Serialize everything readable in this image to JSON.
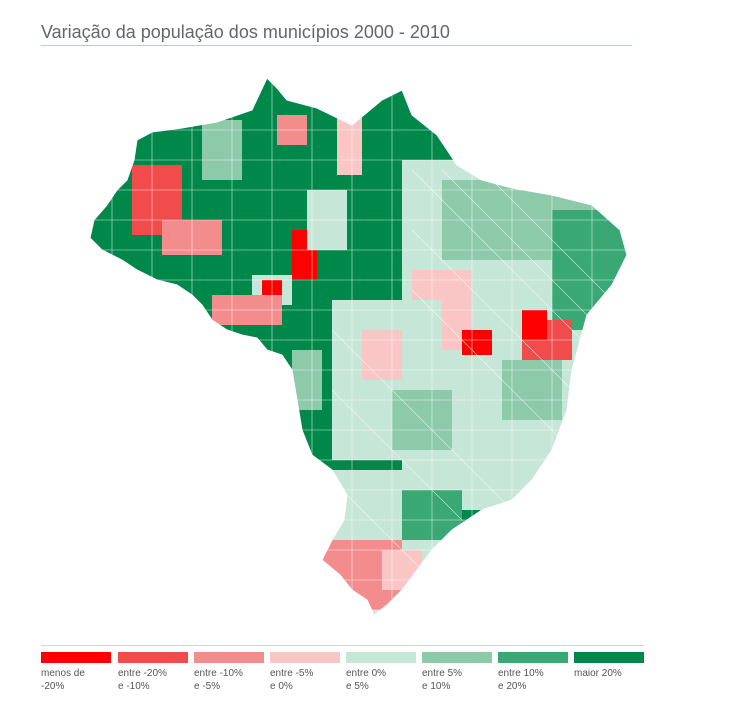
{
  "title": "Variação da população dos municípios 2000 - 2010",
  "legend": [
    {
      "label": "menos de\n-20%",
      "color": "#ff0000"
    },
    {
      "label": "entre -20%\ne -10%",
      "color": "#f14b4b"
    },
    {
      "label": "entre -10%\ne -5%",
      "color": "#f38c8c"
    },
    {
      "label": "entre -5%\ne 0%",
      "color": "#f9c5c5"
    },
    {
      "label": "entre 0%\ne 5%",
      "color": "#c6e6d7"
    },
    {
      "label": "entre 5%\ne 10%",
      "color": "#8ccaa9"
    },
    {
      "label": "entre 10%\ne 20%",
      "color": "#3aa874"
    },
    {
      "label": "maior 20%",
      "color": "#00884a"
    }
  ]
}
